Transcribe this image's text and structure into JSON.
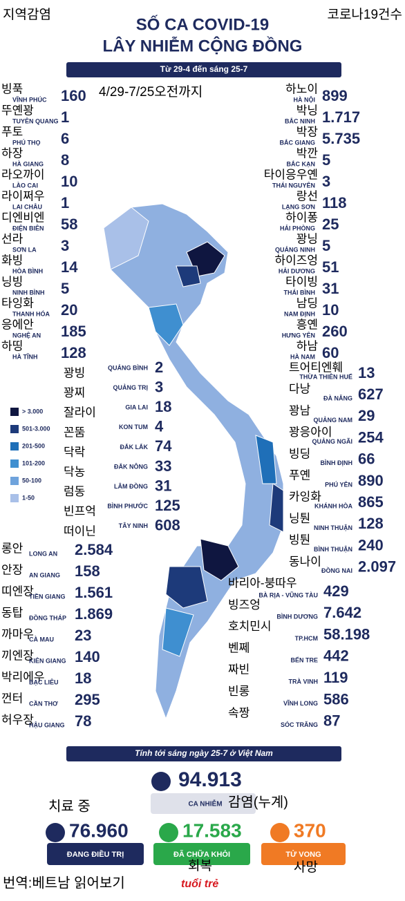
{
  "header": {
    "korean_left": "지역감염",
    "korean_right": "코로나19건수",
    "title_line1": "SỐ CA COVID-19",
    "title_line2": "LÂY NHIỄM CỘNG ĐỒNG",
    "date_range": "Từ 29-4 đến sáng 25-7",
    "korean_date": "4/29-7/25오전까지"
  },
  "legend": [
    {
      "label": "> 3.000",
      "color": "#0f1640"
    },
    {
      "label": "501-3.000",
      "color": "#1d3a7a"
    },
    {
      "label": "201-500",
      "color": "#1f6fb8"
    },
    {
      "label": "101-200",
      "color": "#3f8fd0"
    },
    {
      "label": "50-100",
      "color": "#6fa3dc"
    },
    {
      "label": "1-50",
      "color": "#a9c0e8"
    }
  ],
  "groups": [
    {
      "provinces": [
        {
          "name": "VĨNH PHÚC",
          "korean": "빙푹",
          "value": "160"
        },
        {
          "name": "TUYÊN QUANG",
          "korean": "뚜옌꽝",
          "value": "1"
        },
        {
          "name": "PHÚ THỌ",
          "korean": "푸토",
          "value": "6"
        },
        {
          "name": "HÀ GIANG",
          "korean": "하장",
          "value": "8"
        },
        {
          "name": "LÀO CAI",
          "korean": "라오까이",
          "value": "10"
        },
        {
          "name": "LAI CHÂU",
          "korean": "라이쩌우",
          "value": "1"
        },
        {
          "name": "ĐIỆN BIÊN",
          "korean": "디엔비엔",
          "value": "58"
        },
        {
          "name": "SƠN LA",
          "korean": "선라",
          "value": "3"
        },
        {
          "name": "HÒA BÌNH",
          "korean": "화빙",
          "value": "14"
        },
        {
          "name": "NINH BÌNH",
          "korean": "닝빙",
          "value": "5"
        },
        {
          "name": "THANH HÓA",
          "korean": "타잉화",
          "value": "20"
        },
        {
          "name": "NGHỆ AN",
          "korean": "응에안",
          "value": "185"
        },
        {
          "name": "HÀ TĨNH",
          "korean": "하띵",
          "value": "128"
        }
      ]
    },
    {
      "provinces": [
        {
          "name": "HÀ NỘI",
          "korean": "하노이",
          "value": "899"
        },
        {
          "name": "BẮC NINH",
          "korean": "박닝",
          "value": "1.717"
        },
        {
          "name": "BẮC GIANG",
          "korean": "박장",
          "value": "5.735"
        },
        {
          "name": "BẮC KẠN",
          "korean": "박깐",
          "value": "5"
        },
        {
          "name": "THÁI NGUYÊN",
          "korean": "타이응우옌",
          "value": "3"
        },
        {
          "name": "LẠNG SƠN",
          "korean": "랑선",
          "value": "118"
        },
        {
          "name": "HẢI PHÒNG",
          "korean": "하이퐁",
          "value": "25"
        },
        {
          "name": "QUẢNG NINH",
          "korean": "꽝닝",
          "value": "5"
        },
        {
          "name": "HẢI DƯƠNG",
          "korean": "하이즈엉",
          "value": "51"
        },
        {
          "name": "THÁI BÌNH",
          "korean": "타이빙",
          "value": "31"
        },
        {
          "name": "NAM ĐỊNH",
          "korean": "남딩",
          "value": "10"
        },
        {
          "name": "HƯNG YÊN",
          "korean": "흥옌",
          "value": "260"
        },
        {
          "name": "HÀ NAM",
          "korean": "하남",
          "value": "60"
        }
      ]
    },
    {
      "provinces": [
        {
          "name": "QUẢNG BÌNH",
          "korean": "꽝빙",
          "value": "2"
        },
        {
          "name": "QUẢNG TRỊ",
          "korean": "꽝찌",
          "value": "3"
        },
        {
          "name": "GIA LAI",
          "korean": "잘라이",
          "value": "18"
        },
        {
          "name": "KON TUM",
          "korean": "꼰뚬",
          "value": "4"
        },
        {
          "name": "ĐẮK LẮK",
          "korean": "닥락",
          "value": "74"
        },
        {
          "name": "ĐẮK NÔNG",
          "korean": "닥농",
          "value": "33"
        },
        {
          "name": "LÂM ĐỒNG",
          "korean": "럼동",
          "value": "31"
        },
        {
          "name": "BÌNH PHƯỚC",
          "korean": "빈프억",
          "value": "125"
        },
        {
          "name": "TÂY NINH",
          "korean": "떠이닌",
          "value": "608"
        }
      ]
    },
    {
      "provinces": [
        {
          "name": "THỪA THIÊN HUẾ",
          "korean": "트어티엔훼",
          "value": "13"
        },
        {
          "name": "ĐÀ NẴNG",
          "korean": "다낭",
          "value": "627"
        },
        {
          "name": "QUẢNG NAM",
          "korean": "꽝남",
          "value": "29"
        },
        {
          "name": "QUẢNG NGÃI",
          "korean": "꽝응아이",
          "value": "254"
        },
        {
          "name": "BÌNH ĐỊNH",
          "korean": "빙딩",
          "value": "66"
        },
        {
          "name": "PHÚ YÊN",
          "korean": "푸옌",
          "value": "890"
        },
        {
          "name": "KHÁNH HÒA",
          "korean": "카잉화",
          "value": "865"
        },
        {
          "name": "NINH THUẬN",
          "korean": "닝퉌",
          "value": "128"
        },
        {
          "name": "BÌNH THUẬN",
          "korean": "빙퉌",
          "value": "240"
        },
        {
          "name": "ĐỒNG NAI",
          "korean": "동나이",
          "value": "2.097"
        }
      ]
    },
    {
      "provinces": [
        {
          "name": "LONG AN",
          "korean": "롱안",
          "value": "2.584"
        },
        {
          "name": "AN GIANG",
          "korean": "안장",
          "value": "158"
        },
        {
          "name": "TIỀN GIANG",
          "korean": "띠엔장",
          "value": "1.561"
        },
        {
          "name": "ĐỒNG THÁP",
          "korean": "동탑",
          "value": "1.869"
        },
        {
          "name": "CÀ MAU",
          "korean": "까마우",
          "value": "23"
        },
        {
          "name": "KIÊN GIANG",
          "korean": "끼엔장",
          "value": "140"
        },
        {
          "name": "BẠC LIÊU",
          "korean": "박리에우",
          "value": "18"
        },
        {
          "name": "CẦN THƠ",
          "korean": "껀터",
          "value": "295"
        },
        {
          "name": "HẬU GIANG",
          "korean": "허우장",
          "value": "78"
        }
      ]
    },
    {
      "provinces": [
        {
          "name": "BÀ RỊA - VŨNG TÀU",
          "korean": "바리아-붕따우",
          "value": "429"
        },
        {
          "name": "BÌNH DƯƠNG",
          "korean": "빙즈엉",
          "value": "7.642"
        },
        {
          "name": "TP.HCM",
          "korean": "호치민시",
          "value": "58.198"
        },
        {
          "name": "BẾN TRE",
          "korean": "벤쩨",
          "value": "442"
        },
        {
          "name": "TRÀ VINH",
          "korean": "짜빈",
          "value": "119"
        },
        {
          "name": "VĨNH LONG",
          "korean": "빈롱",
          "value": "586"
        },
        {
          "name": "SÓC TRĂNG",
          "korean": "속짱",
          "value": "87"
        }
      ]
    }
  ],
  "footer": {
    "note": "Tính tới sáng ngày 25-7 ở Việt Nam",
    "total_value": "94.913",
    "total_label": "CA NHIỄM",
    "total_korean": "감염(누계)",
    "treating_korean": "치료 중",
    "treating_value": "76.960",
    "treating_label": "ĐANG ĐIỀU TRỊ",
    "recovered_value": "17.583",
    "recovered_label": "ĐÃ CHỮA KHỎI",
    "recovered_korean": "회복",
    "deaths_value": "370",
    "deaths_label": "TỬ VONG",
    "deaths_korean": "사망",
    "credit": "번역:베트남 읽어보기",
    "logo": "tuổi trẻ"
  }
}
